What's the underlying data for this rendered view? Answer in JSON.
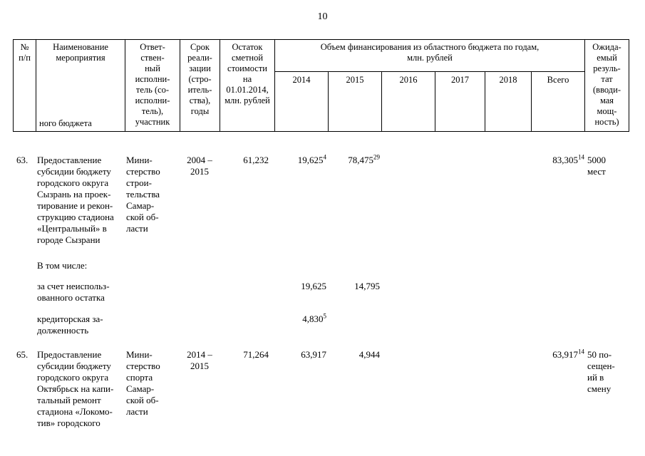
{
  "page": {
    "number": "10"
  },
  "header": {
    "col_no": "№\nп/п",
    "col_name": "Наименование\nмероприятия",
    "col_name_cont": "ного бюджета",
    "col_executor": "Ответ-\nствен-\nный\nисполни-\nтель (со-\nисполни-\nтель),\nучастник",
    "col_term": "Срок\nреали-\nзации\n(стро-\nитель-\nства),\nгоды",
    "col_balance": "Остаток\nсметной\nстоимости\nна\n01.01.2014,\nмлн. рублей",
    "col_funding": "Объем финансирования из областного бюджета по годам,\nмлн. рублей",
    "years": {
      "y2014": "2014",
      "y2015": "2015",
      "y2016": "2016",
      "y2017": "2017",
      "y2018": "2018",
      "total": "Всего"
    },
    "col_result": "Ожида-\nемый\nрезуль-\nтат\n(вводи-\nмая\nмощ-\nность)"
  },
  "row63": {
    "num": "63.",
    "name": "Предоставление\nсубсидии бюджету\nгородского округа\nСызрань на проек-\nтирование и рекон-\nструкцию стадиона\n«Центральный» в\nгороде Сызрани",
    "executor": "Мини-\nстерство\nстрои-\nтельства\nСамар-\nской об-\nласти",
    "term": "2004 –\n2015",
    "balance": "61,232",
    "y2014": "19,625",
    "y2014_sup": "4",
    "y2015": "78,475",
    "y2015_sup": "29",
    "total": "83,305",
    "total_sup": "14",
    "result": "5000\nмест"
  },
  "subheading": {
    "label": "В том числе:"
  },
  "subrow_balance": {
    "name": "за счет неиспольз-\nованного остатка",
    "y2014": "19,625",
    "y2015": "14,795"
  },
  "subrow_credit": {
    "name": "кредиторская за-\nдолженность",
    "y2014": "4,830",
    "y2014_sup": "5"
  },
  "row65": {
    "num": "65.",
    "name": "Предоставление\nсубсидии бюджету\nгородского округа\nОктябрьск на капи-\nтальный ремонт\nстадиона «Локомо-\nтив» городского",
    "executor": "Мини-\nстерство\nспорта\nСамар-\nской об-\nласти",
    "term": "2014 –\n2015",
    "balance": "71,264",
    "y2014": "63,917",
    "y2015": "4,944",
    "total": "63,917",
    "total_sup": "14",
    "result": "50 по-\nсещен-\nий в\nсмену"
  }
}
